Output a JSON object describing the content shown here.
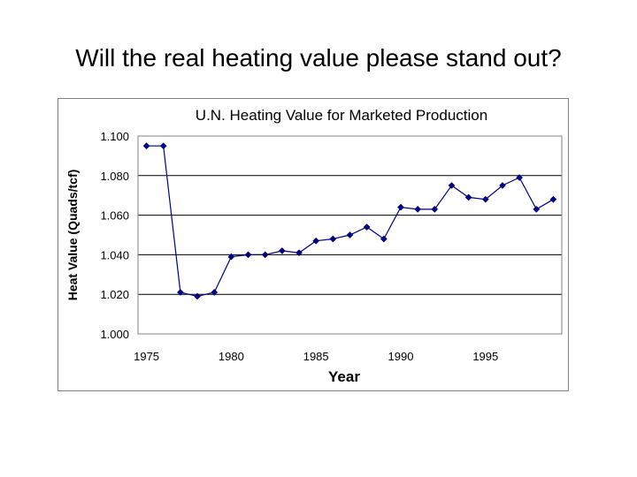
{
  "slide": {
    "title": "Will the real heating value please stand out?"
  },
  "chart_data": {
    "type": "line",
    "title": "U.N. Heating Value for Marketed Production",
    "xlabel": "Year",
    "ylabel": "Heat Value (Quads/tcf)",
    "xlim": [
      1975,
      1999
    ],
    "ylim": [
      1.0,
      1.1
    ],
    "x_ticks": [
      1975,
      1980,
      1985,
      1990,
      1995
    ],
    "y_ticks": [
      "1.000",
      "1.020",
      "1.040",
      "1.060",
      "1.080",
      "1.100"
    ],
    "grid": "horizontal",
    "colors": {
      "series": "#000080",
      "grid": "#000000",
      "plot_border": "#808080"
    },
    "series": [
      {
        "x": [
          1975,
          1976,
          1977,
          1978,
          1979,
          1980,
          1981,
          1982,
          1983,
          1984,
          1985,
          1986,
          1987,
          1988,
          1989,
          1990,
          1991,
          1992,
          1993,
          1994,
          1995,
          1996,
          1997,
          1998,
          1999
        ],
        "values": [
          1.095,
          1.095,
          1.021,
          1.019,
          1.021,
          1.039,
          1.04,
          1.04,
          1.042,
          1.041,
          1.047,
          1.048,
          1.05,
          1.054,
          1.048,
          1.064,
          1.063,
          1.063,
          1.075,
          1.069,
          1.068,
          1.075,
          1.079,
          1.063,
          1.068
        ]
      }
    ]
  }
}
